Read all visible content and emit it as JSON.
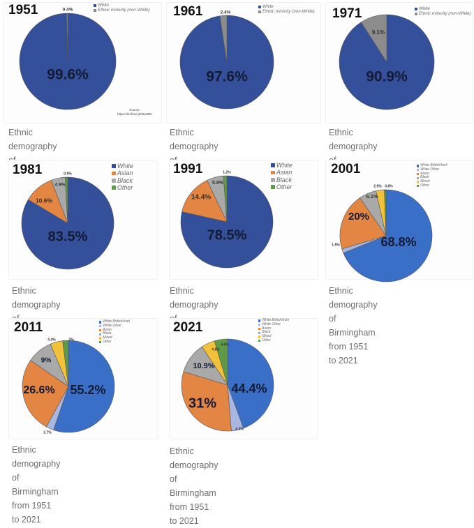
{
  "colors": {
    "white_navy": "#34509a",
    "white_british_blue": "#3a6fc7",
    "white_other": "#a9b7e0",
    "asian": "#e38543",
    "black": "#a9a9a9",
    "mixed": "#f2c13a",
    "other": "#5f9b47",
    "minority_grey": "#8c8c8c"
  },
  "caption_line1": "Ethnic demography of",
  "caption_line2": "Birmingham from 1951 to 2021",
  "chart_data": [
    {
      "type": "pie",
      "title": "1951",
      "legend": [
        "White",
        "Ethnic minority (non-White)"
      ],
      "slices": [
        {
          "label": "White",
          "value": 99.6,
          "display": "99.6%",
          "color": "#34509a"
        },
        {
          "label": "Ethnic minority (non-White)",
          "value": 0.4,
          "display": "0.4%",
          "color": "#8c8c8c"
        }
      ],
      "source": "Source: https://archive.ph/6w3R6"
    },
    {
      "type": "pie",
      "title": "1961",
      "legend": [
        "White",
        "Ethnic minority (non-White)"
      ],
      "slices": [
        {
          "label": "White",
          "value": 97.6,
          "display": "97.6%",
          "color": "#34509a"
        },
        {
          "label": "Ethnic minority (non-White)",
          "value": 2.4,
          "display": "2.4%",
          "color": "#8c8c8c"
        }
      ]
    },
    {
      "type": "pie",
      "title": "1971",
      "legend": [
        "White",
        "Ethnic minority (non-White)"
      ],
      "slices": [
        {
          "label": "White",
          "value": 90.9,
          "display": "90.9%",
          "color": "#34509a"
        },
        {
          "label": "Ethnic minority (non-White)",
          "value": 9.1,
          "display": "9.1%",
          "color": "#8c8c8c"
        }
      ]
    },
    {
      "type": "pie",
      "title": "1981",
      "legend": [
        "White",
        "Asian",
        "Black",
        "Other"
      ],
      "slices": [
        {
          "label": "White",
          "value": 83.5,
          "display": "83.5%",
          "color": "#34509a"
        },
        {
          "label": "Asian",
          "value": 10.6,
          "display": "10.6%",
          "color": "#e38543"
        },
        {
          "label": "Black",
          "value": 4.9,
          "display": "4.9%",
          "color": "#a9a9a9"
        },
        {
          "label": "Other",
          "value": 0.9,
          "display": "0.9%",
          "color": "#5f9b47"
        }
      ]
    },
    {
      "type": "pie",
      "title": "1991",
      "legend": [
        "White",
        "Asian",
        "Black",
        "Other"
      ],
      "slices": [
        {
          "label": "White",
          "value": 78.5,
          "display": "78.5%",
          "color": "#34509a"
        },
        {
          "label": "Asian",
          "value": 14.4,
          "display": "14.4%",
          "color": "#e38543"
        },
        {
          "label": "Black",
          "value": 5.9,
          "display": "5.9%",
          "color": "#a9a9a9"
        },
        {
          "label": "Other",
          "value": 1.2,
          "display": "1.2%",
          "color": "#5f9b47"
        }
      ]
    },
    {
      "type": "pie",
      "title": "2001",
      "legend": [
        "White British/Irish",
        "White Other",
        "Asian",
        "Black",
        "Mixed",
        "Other"
      ],
      "slices": [
        {
          "label": "White British/Irish",
          "value": 68.8,
          "display": "68.8%",
          "color": "#3a6fc7"
        },
        {
          "label": "White Other",
          "value": 1.5,
          "display": "1.5%",
          "color": "#a9b7e0"
        },
        {
          "label": "Asian",
          "value": 20,
          "display": "20%",
          "color": "#e38543"
        },
        {
          "label": "Black",
          "value": 6.1,
          "display": "6.1%",
          "color": "#a9a9a9"
        },
        {
          "label": "Mixed",
          "value": 2.9,
          "display": "2.9%",
          "color": "#f2c13a"
        },
        {
          "label": "Other",
          "value": 0.6,
          "display": "0.6%",
          "color": "#5f9b47"
        }
      ]
    },
    {
      "type": "pie",
      "title": "2011",
      "legend": [
        "White British/Irish",
        "White Other",
        "Asian",
        "Black",
        "Mixed",
        "Other"
      ],
      "slices": [
        {
          "label": "White British/Irish",
          "value": 55.2,
          "display": "55.2%",
          "color": "#3a6fc7"
        },
        {
          "label": "White Other",
          "value": 2.7,
          "display": "2.7%",
          "color": "#a9b7e0"
        },
        {
          "label": "Asian",
          "value": 26.6,
          "display": "26.6%",
          "color": "#e38543"
        },
        {
          "label": "Black",
          "value": 9,
          "display": "9%",
          "color": "#a9a9a9"
        },
        {
          "label": "Mixed",
          "value": 4.4,
          "display": "4.4%",
          "color": "#f2c13a"
        },
        {
          "label": "Other",
          "value": 2,
          "display": "2%",
          "color": "#5f9b47"
        }
      ]
    },
    {
      "type": "pie",
      "title": "2021",
      "legend": [
        "White British/Irish",
        "White Other",
        "Asian",
        "Black",
        "Mixed",
        "Other"
      ],
      "slices": [
        {
          "label": "White British/Irish",
          "value": 44.4,
          "display": "44.4%",
          "color": "#3a6fc7"
        },
        {
          "label": "White Other",
          "value": 4.3,
          "display": "4.3%",
          "color": "#a9b7e0"
        },
        {
          "label": "Asian",
          "value": 31,
          "display": "31%",
          "color": "#e38543"
        },
        {
          "label": "Black",
          "value": 10.9,
          "display": "10.9%",
          "color": "#a9a9a9"
        },
        {
          "label": "Mixed",
          "value": 4.8,
          "display": "4.8%",
          "color": "#f2c13a"
        },
        {
          "label": "Other",
          "value": 4.6,
          "display": "4.6%",
          "color": "#5f9b47"
        }
      ]
    }
  ]
}
